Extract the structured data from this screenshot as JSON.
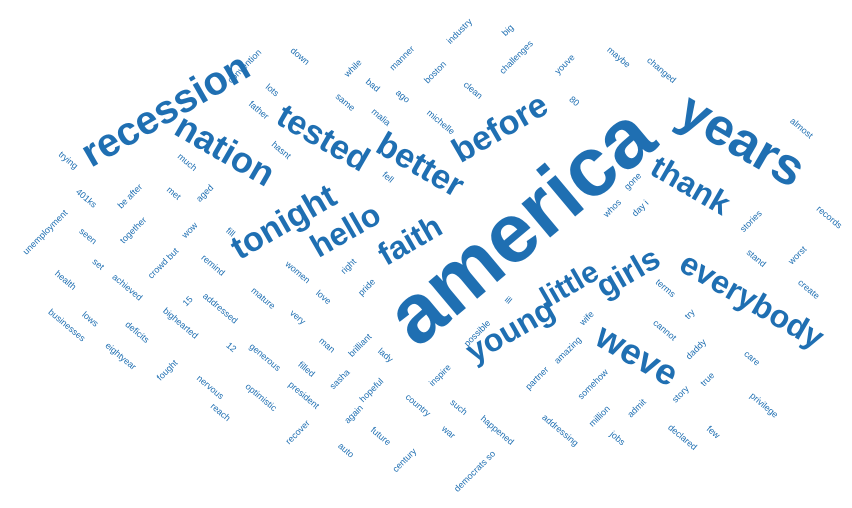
{
  "style": {
    "color": "#1f6fb2",
    "background": "#ffffff"
  },
  "words": [
    {
      "text": "america",
      "weight": 100
    },
    {
      "text": "years",
      "weight": 60
    },
    {
      "text": "recession",
      "weight": 44
    },
    {
      "text": "nation",
      "weight": 40
    },
    {
      "text": "tested",
      "weight": 38
    },
    {
      "text": "better",
      "weight": 37
    },
    {
      "text": "before",
      "weight": 37
    },
    {
      "text": "tonight",
      "weight": 38
    },
    {
      "text": "hello",
      "weight": 36
    },
    {
      "text": "faith",
      "weight": 36
    },
    {
      "text": "thank",
      "weight": 36
    },
    {
      "text": "young",
      "weight": 37
    },
    {
      "text": "little",
      "weight": 36
    },
    {
      "text": "girls",
      "weight": 36
    },
    {
      "text": "everybody",
      "weight": 36
    },
    {
      "text": "weve",
      "weight": 40
    },
    {
      "text": "convention",
      "weight": 9
    },
    {
      "text": "down",
      "weight": 9
    },
    {
      "text": "while",
      "weight": 9
    },
    {
      "text": "manner",
      "weight": 9
    },
    {
      "text": "industry",
      "weight": 9
    },
    {
      "text": "big",
      "weight": 9
    },
    {
      "text": "lots",
      "weight": 9
    },
    {
      "text": "bad",
      "weight": 9
    },
    {
      "text": "boston",
      "weight": 9
    },
    {
      "text": "challenges",
      "weight": 9
    },
    {
      "text": "youve",
      "weight": 9
    },
    {
      "text": "maybe",
      "weight": 9
    },
    {
      "text": "changed",
      "weight": 9
    },
    {
      "text": "same",
      "weight": 9
    },
    {
      "text": "ago",
      "weight": 9
    },
    {
      "text": "clean",
      "weight": 9
    },
    {
      "text": "80",
      "weight": 9
    },
    {
      "text": "father",
      "weight": 9
    },
    {
      "text": "malia",
      "weight": 9
    },
    {
      "text": "michelle",
      "weight": 9
    },
    {
      "text": "almost",
      "weight": 9
    },
    {
      "text": "hasnt",
      "weight": 9
    },
    {
      "text": "trying",
      "weight": 9
    },
    {
      "text": "much",
      "weight": 9
    },
    {
      "text": "fell",
      "weight": 9
    },
    {
      "text": "gone",
      "weight": 9
    },
    {
      "text": "met",
      "weight": 9
    },
    {
      "text": "401ks",
      "weight": 9
    },
    {
      "text": "be after",
      "weight": 9
    },
    {
      "text": "aged",
      "weight": 9
    },
    {
      "text": "whos",
      "weight": 9
    },
    {
      "text": "day i",
      "weight": 9
    },
    {
      "text": "stories",
      "weight": 9
    },
    {
      "text": "records",
      "weight": 9
    },
    {
      "text": "unemployment",
      "weight": 9
    },
    {
      "text": "seen",
      "weight": 9
    },
    {
      "text": "together",
      "weight": 9
    },
    {
      "text": "wow",
      "weight": 9
    },
    {
      "text": "fill",
      "weight": 9
    },
    {
      "text": "stand",
      "weight": 9
    },
    {
      "text": "worst",
      "weight": 9
    },
    {
      "text": "set",
      "weight": 9
    },
    {
      "text": "crowd but",
      "weight": 9
    },
    {
      "text": "remind",
      "weight": 9
    },
    {
      "text": "women",
      "weight": 9
    },
    {
      "text": "right",
      "weight": 9
    },
    {
      "text": "pride",
      "weight": 9
    },
    {
      "text": "create",
      "weight": 9
    },
    {
      "text": "health",
      "weight": 9
    },
    {
      "text": "achieved",
      "weight": 9
    },
    {
      "text": "15",
      "weight": 9
    },
    {
      "text": "addressed",
      "weight": 9
    },
    {
      "text": "mature",
      "weight": 9
    },
    {
      "text": "love",
      "weight": 9
    },
    {
      "text": "ill",
      "weight": 9
    },
    {
      "text": "terms",
      "weight": 9
    },
    {
      "text": "businesses",
      "weight": 9
    },
    {
      "text": "lows",
      "weight": 9
    },
    {
      "text": "deficits",
      "weight": 9
    },
    {
      "text": "bighearted",
      "weight": 9
    },
    {
      "text": "very",
      "weight": 9
    },
    {
      "text": "possible",
      "weight": 9
    },
    {
      "text": "wife",
      "weight": 9
    },
    {
      "text": "try",
      "weight": 9
    },
    {
      "text": "cannot",
      "weight": 9
    },
    {
      "text": "eightyear",
      "weight": 9
    },
    {
      "text": "fought",
      "weight": 9
    },
    {
      "text": "12",
      "weight": 9
    },
    {
      "text": "generous",
      "weight": 9
    },
    {
      "text": "man",
      "weight": 9
    },
    {
      "text": "brilliant",
      "weight": 9
    },
    {
      "text": "amazing",
      "weight": 9
    },
    {
      "text": "daddy",
      "weight": 9
    },
    {
      "text": "care",
      "weight": 9
    },
    {
      "text": "nervous",
      "weight": 9
    },
    {
      "text": "filled",
      "weight": 9
    },
    {
      "text": "sasha",
      "weight": 9
    },
    {
      "text": "lady",
      "weight": 9
    },
    {
      "text": "inspire",
      "weight": 9
    },
    {
      "text": "partner",
      "weight": 9
    },
    {
      "text": "somehow",
      "weight": 9
    },
    {
      "text": "true",
      "weight": 9
    },
    {
      "text": "privilege",
      "weight": 9
    },
    {
      "text": "reach",
      "weight": 9
    },
    {
      "text": "optimistic",
      "weight": 9
    },
    {
      "text": "president",
      "weight": 9
    },
    {
      "text": "hopeful",
      "weight": 9
    },
    {
      "text": "country",
      "weight": 9
    },
    {
      "text": "such",
      "weight": 9
    },
    {
      "text": "million",
      "weight": 9
    },
    {
      "text": "admit",
      "weight": 9
    },
    {
      "text": "story",
      "weight": 9
    },
    {
      "text": "recover",
      "weight": 9
    },
    {
      "text": "again",
      "weight": 9
    },
    {
      "text": "future",
      "weight": 9
    },
    {
      "text": "war",
      "weight": 9
    },
    {
      "text": "happened",
      "weight": 9
    },
    {
      "text": "addressing",
      "weight": 9
    },
    {
      "text": "jobs",
      "weight": 9
    },
    {
      "text": "declared",
      "weight": 9
    },
    {
      "text": "few",
      "weight": 9
    },
    {
      "text": "auto",
      "weight": 9
    },
    {
      "text": "century",
      "weight": 9
    },
    {
      "text": "democrats so",
      "weight": 9
    }
  ]
}
